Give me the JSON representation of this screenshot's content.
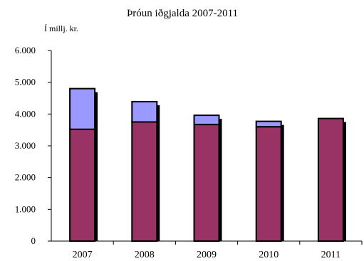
{
  "chart_data": {
    "type": "bar",
    "stacked": true,
    "title": "Þróun iðgjalda 2007-2011",
    "unit_label": "Í millj. kr.",
    "xlabel": "",
    "ylabel": "",
    "categories": [
      "2007",
      "2008",
      "2009",
      "2010",
      "2011"
    ],
    "series": [
      {
        "values": [
          3520,
          3750,
          3670,
          3600,
          3860
        ]
      },
      {
        "values": [
          1280,
          640,
          290,
          170,
          0
        ]
      }
    ],
    "ylim": [
      0,
      6000
    ],
    "y_ticks": [
      0,
      1000,
      2000,
      3000,
      4000,
      5000,
      6000
    ],
    "y_tick_labels": [
      "0",
      "1.000",
      "2.000",
      "3.000",
      "4.000",
      "5.000",
      "6.000"
    ],
    "grid": false,
    "legend": "none",
    "colors": {
      "bottom": "#993366",
      "top": "#9999ff",
      "outline": "#000000",
      "shadow": "#000000"
    }
  }
}
